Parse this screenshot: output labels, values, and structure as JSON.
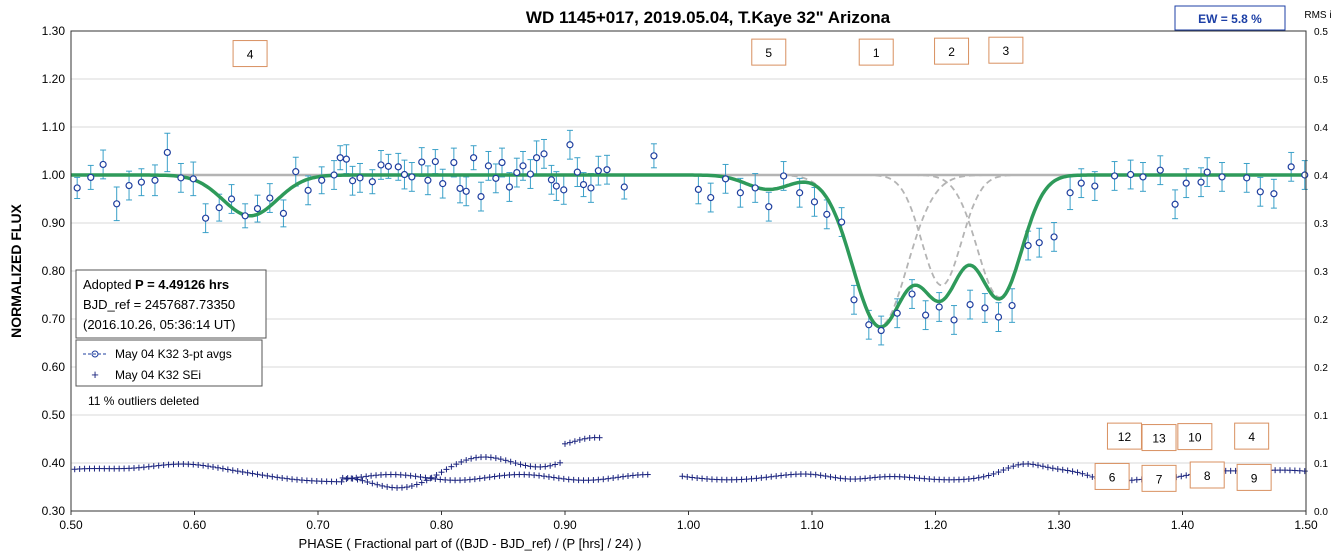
{
  "chart_data": {
    "type": "scatter",
    "title": "WD 1145+017, 2019.05.04, T.Kaye 32\" Arizona",
    "xlabel": "PHASE ( Fractional part of ((BJD - BJD_ref) / (P [hrs] / 24) )",
    "ylabel": "NORMALIZED FLUX",
    "y2label": "RMS i",
    "xlim": [
      0.5,
      1.5
    ],
    "ylim": [
      0.3,
      1.3
    ],
    "y2lim": [
      0.0,
      0.5
    ],
    "xticks": [
      "0.50",
      "0.60",
      "0.70",
      "0.80",
      "0.90",
      "1.00",
      "1.10",
      "1.20",
      "1.30",
      "1.40",
      "1.50"
    ],
    "yticks": [
      "0.30",
      "0.40",
      "0.50",
      "0.60",
      "0.70",
      "0.80",
      "0.90",
      "1.00",
      "1.10",
      "1.20",
      "1.30"
    ],
    "y2ticks": [
      "0.0",
      "0.1",
      "0.1",
      "0.2",
      "0.2",
      "0.3",
      "0.3",
      "0.4",
      "0.4",
      "0.5",
      "0.5"
    ],
    "grid": "horizontal",
    "ew_badge": "EW =  5.8 %",
    "info_box": {
      "line1_prefix": "Adopted ",
      "line1_bold": "P = 4.49126 hrs",
      "line2": "BJD_ref = 2457687.73350",
      "line3": "(2016.10.26, 05:36:14 UT)"
    },
    "legend": [
      {
        "label": "May 04 K32 3-pt avgs",
        "marker": "circle-dash",
        "color": "#1f3f9f"
      },
      {
        "label": "May 04 K32 SEi",
        "marker": "plus",
        "color": "#1a237e"
      }
    ],
    "outliers_note": "11 % outliers deleted",
    "dip_labels": [
      {
        "text": "4",
        "x": 0.645,
        "y": 1.253
      },
      {
        "text": "5",
        "x": 1.065,
        "y": 1.256
      },
      {
        "text": "1",
        "x": 1.152,
        "y": 1.256
      },
      {
        "text": "2",
        "x": 1.213,
        "y": 1.258
      },
      {
        "text": "3",
        "x": 1.257,
        "y": 1.26
      },
      {
        "text": "12",
        "x": 1.353,
        "y": 0.456
      },
      {
        "text": "13",
        "x": 1.381,
        "y": 0.453
      },
      {
        "text": "10",
        "x": 1.41,
        "y": 0.455
      },
      {
        "text": "4",
        "x": 1.456,
        "y": 0.456
      },
      {
        "text": "6",
        "x": 1.343,
        "y": 0.372
      },
      {
        "text": "7",
        "x": 1.381,
        "y": 0.368
      },
      {
        "text": "8",
        "x": 1.42,
        "y": 0.375
      },
      {
        "text": "9",
        "x": 1.458,
        "y": 0.37
      }
    ],
    "baseline": 1.0,
    "dips": [
      {
        "name": "4",
        "center": 0.645,
        "depth": 0.085,
        "width": 0.022
      },
      {
        "name": "5",
        "center": 1.065,
        "depth": 0.03,
        "width": 0.018
      },
      {
        "name": "1",
        "center": 1.155,
        "depth": 0.315,
        "width": 0.022
      },
      {
        "name": "2",
        "center": 1.205,
        "depth": 0.23,
        "width": 0.016
      },
      {
        "name": "3",
        "center": 1.252,
        "depth": 0.255,
        "width": 0.018
      }
    ],
    "model_color": "#2e9a5a",
    "component_color": "#b4b4b4",
    "series_points": [
      [
        0.505,
        0.973,
        0.022
      ],
      [
        0.516,
        0.995,
        0.025
      ],
      [
        0.526,
        1.022,
        0.03
      ],
      [
        0.537,
        0.94,
        0.035
      ],
      [
        0.547,
        0.978,
        0.03
      ],
      [
        0.557,
        0.985,
        0.028
      ],
      [
        0.568,
        0.989,
        0.032
      ],
      [
        0.578,
        1.047,
        0.04
      ],
      [
        0.589,
        0.994,
        0.03
      ],
      [
        0.599,
        0.992,
        0.035
      ],
      [
        0.609,
        0.91,
        0.03
      ],
      [
        0.62,
        0.932,
        0.028
      ],
      [
        0.63,
        0.95,
        0.03
      ],
      [
        0.641,
        0.915,
        0.025
      ],
      [
        0.651,
        0.93,
        0.028
      ],
      [
        0.661,
        0.952,
        0.03
      ],
      [
        0.672,
        0.92,
        0.028
      ],
      [
        0.682,
        1.007,
        0.03
      ],
      [
        0.692,
        0.968,
        0.03
      ],
      [
        0.703,
        0.989,
        0.028
      ],
      [
        0.713,
        1.0,
        0.03
      ],
      [
        0.718,
        1.036,
        0.025
      ],
      [
        0.723,
        1.033,
        0.03
      ],
      [
        0.728,
        0.988,
        0.03
      ],
      [
        0.734,
        0.994,
        0.03
      ],
      [
        0.744,
        0.986,
        0.025
      ],
      [
        0.751,
        1.021,
        0.03
      ],
      [
        0.757,
        1.018,
        0.025
      ],
      [
        0.765,
        1.017,
        0.028
      ],
      [
        0.77,
        1.001,
        0.03
      ],
      [
        0.776,
        0.996,
        0.03
      ],
      [
        0.784,
        1.027,
        0.03
      ],
      [
        0.789,
        0.989,
        0.03
      ],
      [
        0.795,
        1.028,
        0.025
      ],
      [
        0.801,
        0.982,
        0.03
      ],
      [
        0.81,
        1.026,
        0.03
      ],
      [
        0.815,
        0.972,
        0.03
      ],
      [
        0.82,
        0.966,
        0.03
      ],
      [
        0.826,
        1.036,
        0.025
      ],
      [
        0.832,
        0.955,
        0.03
      ],
      [
        0.838,
        1.019,
        0.03
      ],
      [
        0.844,
        0.993,
        0.03
      ],
      [
        0.849,
        1.026,
        0.03
      ],
      [
        0.855,
        0.975,
        0.03
      ],
      [
        0.861,
        1.005,
        0.03
      ],
      [
        0.866,
        1.019,
        0.03
      ],
      [
        0.872,
        1.002,
        0.03
      ],
      [
        0.877,
        1.036,
        0.035
      ],
      [
        0.883,
        1.044,
        0.03
      ],
      [
        0.889,
        0.99,
        0.03
      ],
      [
        0.893,
        0.977,
        0.03
      ],
      [
        0.899,
        0.969,
        0.03
      ],
      [
        0.904,
        1.063,
        0.03
      ],
      [
        0.91,
        1.006,
        0.03
      ],
      [
        0.915,
        0.98,
        0.025
      ],
      [
        0.921,
        0.973,
        0.03
      ],
      [
        0.927,
        1.009,
        0.03
      ],
      [
        0.934,
        1.011,
        0.03
      ],
      [
        0.948,
        0.975,
        0.025
      ],
      [
        0.972,
        1.04,
        0.025
      ],
      [
        1.008,
        0.97,
        0.03
      ],
      [
        1.018,
        0.953,
        0.03
      ],
      [
        1.03,
        0.992,
        0.03
      ],
      [
        1.042,
        0.963,
        0.03
      ],
      [
        1.054,
        0.973,
        0.03
      ],
      [
        1.065,
        0.934,
        0.03
      ],
      [
        1.077,
        0.998,
        0.03
      ],
      [
        1.09,
        0.963,
        0.03
      ],
      [
        1.102,
        0.944,
        0.03
      ],
      [
        1.112,
        0.918,
        0.03
      ],
      [
        1.124,
        0.902,
        0.03
      ],
      [
        1.134,
        0.74,
        0.03
      ],
      [
        1.146,
        0.688,
        0.03
      ],
      [
        1.156,
        0.676,
        0.03
      ],
      [
        1.169,
        0.712,
        0.03
      ],
      [
        1.181,
        0.752,
        0.03
      ],
      [
        1.192,
        0.708,
        0.03
      ],
      [
        1.203,
        0.725,
        0.03
      ],
      [
        1.215,
        0.698,
        0.03
      ],
      [
        1.228,
        0.73,
        0.03
      ],
      [
        1.24,
        0.723,
        0.03
      ],
      [
        1.251,
        0.704,
        0.03
      ],
      [
        1.262,
        0.728,
        0.035
      ],
      [
        1.275,
        0.853,
        0.03
      ],
      [
        1.284,
        0.859,
        0.03
      ],
      [
        1.296,
        0.871,
        0.03
      ],
      [
        1.309,
        0.963,
        0.035
      ],
      [
        1.318,
        0.983,
        0.03
      ],
      [
        1.329,
        0.977,
        0.03
      ],
      [
        1.345,
        0.998,
        0.03
      ],
      [
        1.358,
        1.001,
        0.03
      ],
      [
        1.368,
        0.996,
        0.03
      ],
      [
        1.382,
        1.01,
        0.03
      ],
      [
        1.394,
        0.939,
        0.03
      ],
      [
        1.403,
        0.983,
        0.03
      ],
      [
        1.415,
        0.985,
        0.03
      ],
      [
        1.42,
        1.006,
        0.03
      ],
      [
        1.432,
        0.996,
        0.03
      ],
      [
        1.452,
        0.994,
        0.03
      ],
      [
        1.463,
        0.965,
        0.03
      ],
      [
        1.474,
        0.961,
        0.03
      ],
      [
        1.488,
        1.017,
        0.03
      ],
      [
        1.499,
        1.0,
        0.03
      ]
    ]
  }
}
